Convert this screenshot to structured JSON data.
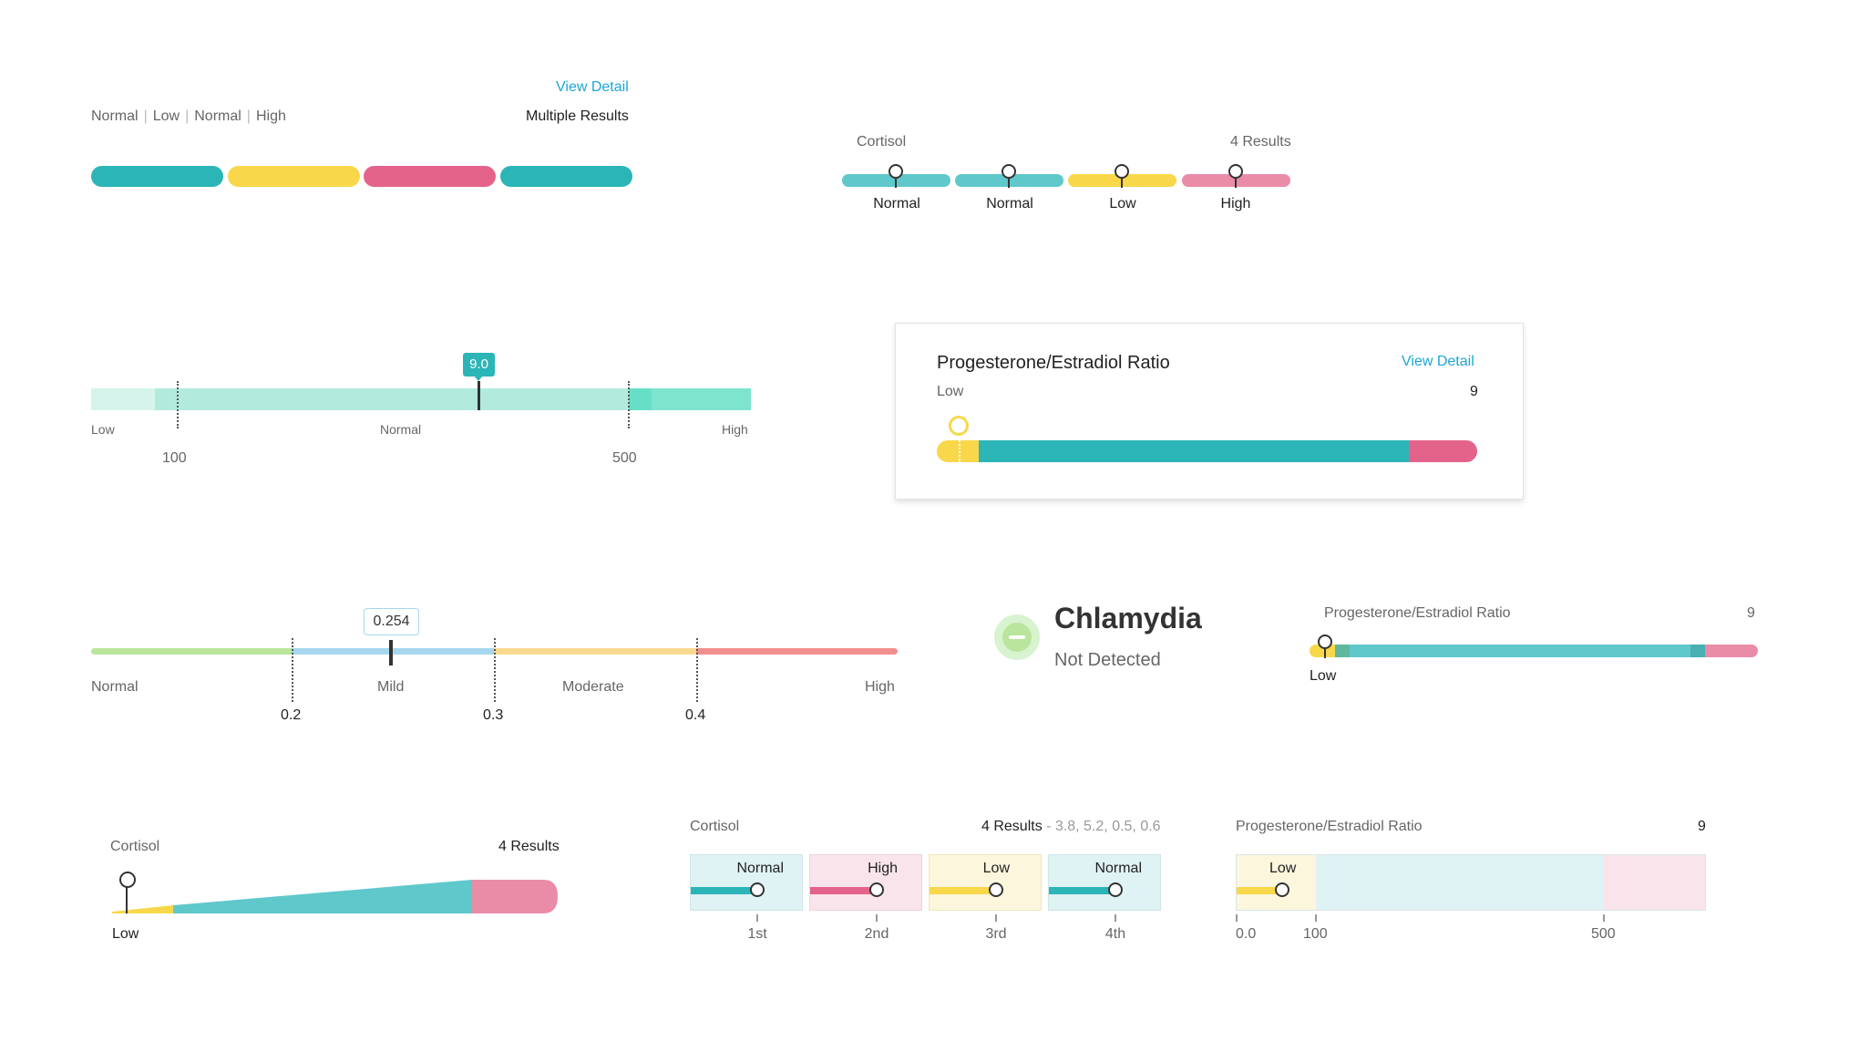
{
  "colors": {
    "teal": "#2cb5b7",
    "teal_light": "#5fc8cb",
    "yellow": "#f8d84a",
    "pink": "#e4638a",
    "pink_light": "#ea8ba7",
    "mint": "#b2ebdd",
    "mint_pale": "#d6f4ec",
    "mint_dark": "#67dfc6",
    "green": "#b9e59c",
    "blue": "#a7d7ef",
    "orange": "#f9d98f",
    "salmon": "#f08f8e",
    "link": "#1ba6d6"
  },
  "w1": {
    "view_detail": "View Detail",
    "labels": [
      "Normal",
      "Low",
      "Normal",
      "High"
    ],
    "multiple_results": "Multiple Results",
    "segments": [
      "Normal",
      "Low",
      "High",
      "Normal"
    ]
  },
  "w2": {
    "title": "Cortisol",
    "count": "4 Results",
    "results": [
      "Normal",
      "Normal",
      "Low",
      "High"
    ]
  },
  "w3": {
    "value": "9.0",
    "labels": {
      "low": "Low",
      "normal": "Normal",
      "high": "High"
    },
    "ticks": [
      "100",
      "500"
    ],
    "value_fraction": 0.59
  },
  "w4": {
    "title": "Progesterone/Estradiol Ratio",
    "view_detail": "View Detail",
    "status": "Low",
    "value": "9"
  },
  "w5": {
    "value": "0.254",
    "labels": [
      "Normal",
      "Mild",
      "Moderate",
      "High"
    ],
    "ticks": [
      "0.2",
      "0.3",
      "0.4"
    ]
  },
  "w6": {
    "icon": "minus-circle-icon",
    "title": "Chlamydia",
    "status": "Not Detected"
  },
  "w7": {
    "title": "Progesterone/Estradiol Ratio",
    "value": "9",
    "status": "Low"
  },
  "w8": {
    "title": "Cortisol",
    "count": "4 Results",
    "status": "Low"
  },
  "w9": {
    "title": "Cortisol",
    "count": "4 Results",
    "values": " - 3.8, 5.2, 0.5, 0.6",
    "boxes": [
      {
        "label": "Normal",
        "ordinal": "1st"
      },
      {
        "label": "High",
        "ordinal": "2nd"
      },
      {
        "label": "Low",
        "ordinal": "3rd"
      },
      {
        "label": "Normal",
        "ordinal": "4th"
      }
    ]
  },
  "w10": {
    "title": "Progesterone/Estradiol Ratio",
    "value": "9",
    "status": "Low",
    "ticks": [
      "0.0",
      "100",
      "500"
    ]
  }
}
